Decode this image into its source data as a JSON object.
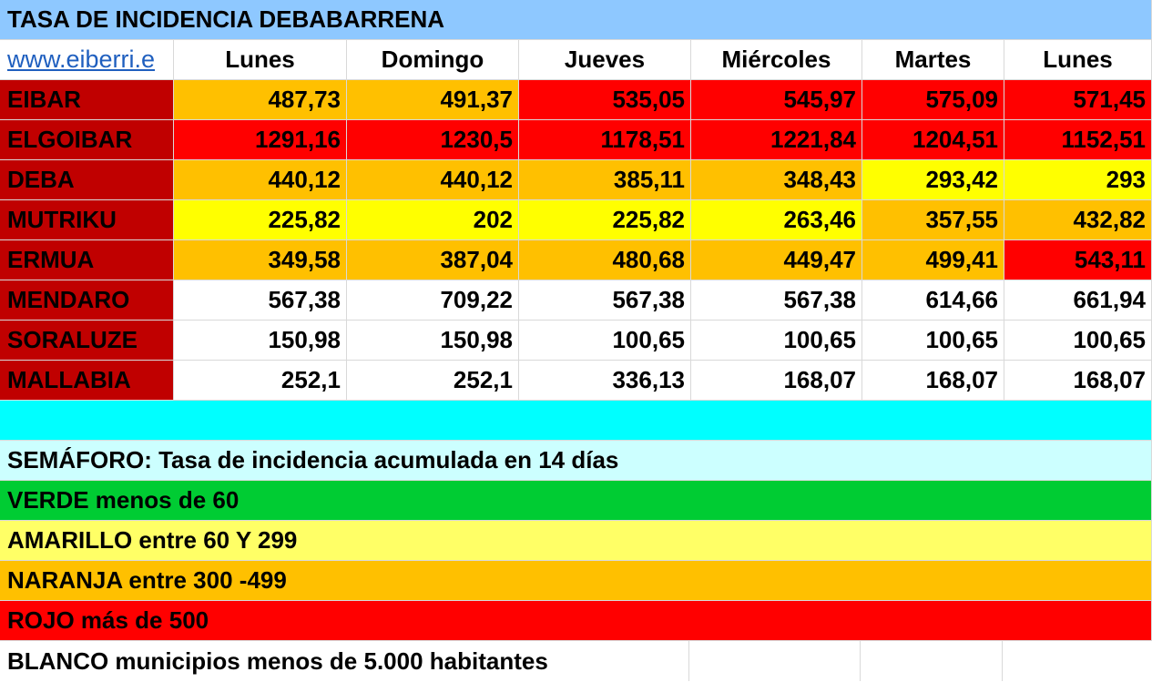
{
  "sheet_title": "TASA DE INCIDENCIA DEBABARRENA",
  "link_text": "www.eiberri.e",
  "days": [
    "Lunes",
    "Domingo",
    "Jueves",
    "Miércoles",
    "Martes",
    "Lunes"
  ],
  "colors": {
    "name_bg": "#c00000",
    "red": "#ff0000",
    "orange": "#ffc000",
    "yellow": "#ffff00",
    "white": "#ffffff",
    "green": "#00cc33",
    "cyan": "#00ffff",
    "light_cyan": "#ccffff",
    "light_yellow": "#ffff66",
    "header_blue": "#8ec8ff"
  },
  "municipalities": [
    {
      "name": "EIBAR",
      "values": [
        "487,73",
        "491,37",
        "535,05",
        "545,97",
        "575,09",
        "571,45"
      ],
      "levels": [
        "orange",
        "orange",
        "red",
        "red",
        "red",
        "red"
      ]
    },
    {
      "name": "ELGOIBAR",
      "values": [
        "1291,16",
        "1230,5",
        "1178,51",
        "1221,84",
        "1204,51",
        "1152,51"
      ],
      "levels": [
        "red",
        "red",
        "red",
        "red",
        "red",
        "red"
      ]
    },
    {
      "name": "DEBA",
      "values": [
        "440,12",
        "440,12",
        "385,11",
        "348,43",
        "293,42",
        "293"
      ],
      "levels": [
        "orange",
        "orange",
        "orange",
        "orange",
        "yellow",
        "yellow"
      ]
    },
    {
      "name": "MUTRIKU",
      "values": [
        "225,82",
        "202",
        "225,82",
        "263,46",
        "357,55",
        "432,82"
      ],
      "levels": [
        "yellow",
        "yellow",
        "yellow",
        "yellow",
        "orange",
        "orange"
      ]
    },
    {
      "name": "ERMUA",
      "values": [
        "349,58",
        "387,04",
        "480,68",
        "449,47",
        "499,41",
        "543,11"
      ],
      "levels": [
        "orange",
        "orange",
        "orange",
        "orange",
        "orange",
        "red"
      ]
    },
    {
      "name": "MENDARO",
      "values": [
        "567,38",
        "709,22",
        "567,38",
        "567,38",
        "614,66",
        "661,94"
      ],
      "levels": [
        "white",
        "white",
        "white",
        "white",
        "white",
        "white"
      ]
    },
    {
      "name": "SORALUZE",
      "values": [
        "150,98",
        "150,98",
        "100,65",
        "100,65",
        "100,65",
        "100,65"
      ],
      "levels": [
        "white",
        "white",
        "white",
        "white",
        "white",
        "white"
      ]
    },
    {
      "name": "MALLABIA",
      "values": [
        "252,1",
        "252,1",
        "336,13",
        "168,07",
        "168,07",
        "168,07"
      ],
      "levels": [
        "white",
        "white",
        "white",
        "white",
        "white",
        "white"
      ]
    }
  ],
  "legend": {
    "title": "SEMÁFORO:  Tasa de incidencia acumulada en 14 días",
    "items": [
      {
        "text": "VERDE menos de 60",
        "color_key": "green"
      },
      {
        "text": "AMARILLO entre 60 Y 299",
        "color_key": "lightyellow"
      },
      {
        "text": "NARANJA entre 300 -499",
        "color_key": "orange"
      },
      {
        "text": "ROJO más de 500",
        "color_key": "red"
      },
      {
        "text": "BLANCO municipios menos de 5.000 habitantes",
        "color_key": "white"
      }
    ]
  }
}
